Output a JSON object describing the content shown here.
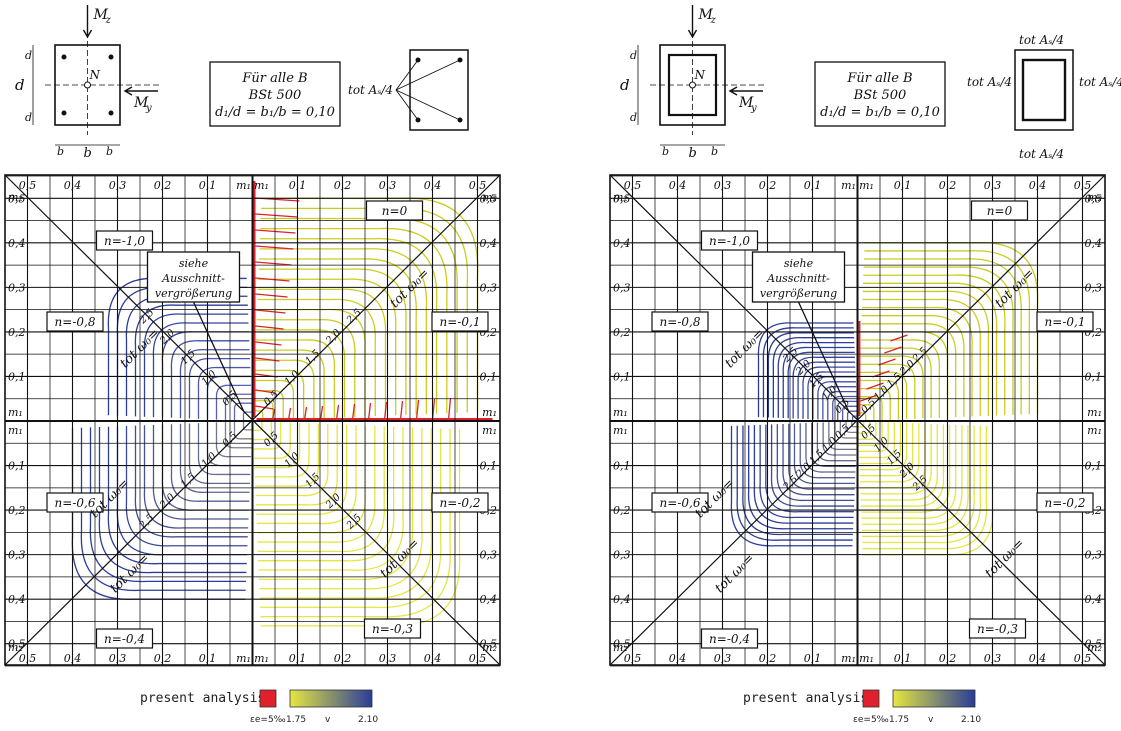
{
  "panels": [
    {
      "id": "left",
      "section_labels": {
        "Mz": "M",
        "Mz_sub": "z",
        "My": "M",
        "My_sub": "y",
        "N": "N",
        "d": "d",
        "d1_top": "d",
        "d1_bot": "d",
        "b": "b",
        "b1_left": "b",
        "b1_right": "b"
      },
      "info_box": [
        "Für alle B",
        "BSt 500",
        "d₁/d = b₁/b = 0,10"
      ],
      "reinforcement_label": "tot Aₛ/4",
      "reinforcement_type": "four-bars",
      "top_ticks": [
        "0,5",
        "0,4",
        "0,3",
        "0,2",
        "0,1",
        "m₁",
        "m₁",
        "0,1",
        "0,2",
        "0,3",
        "0,4",
        "0,5"
      ],
      "side_ticks": [
        "0,5",
        "0,4",
        "0,3",
        "0,2",
        "0,1",
        "m₁",
        "m₁",
        "0,1",
        "0,2",
        "0,3",
        "0,4",
        "0,5"
      ],
      "corner_label": "m₂",
      "n_labels": [
        "n=-1,0",
        "n=0",
        "n=-0,8",
        "n=-0,1",
        "n=-0,6",
        "n=-0,2",
        "n=-0,4",
        "n=-0,3"
      ],
      "callout": [
        "siehe",
        "Ausschnitt-",
        "vergrößerung"
      ],
      "omega_label": "tot ω₀=",
      "contour_labels": [
        "0,5",
        "1,0",
        "1,5",
        "2,0",
        "2,5"
      ]
    },
    {
      "id": "right",
      "section_labels": {
        "Mz": "M",
        "Mz_sub": "z",
        "My": "M",
        "My_sub": "y",
        "N": "N",
        "d": "d",
        "d1_top": "d",
        "d1_bot": "d",
        "b": "b",
        "b1_left": "b",
        "b1_right": "b"
      },
      "info_box": [
        "Für alle B",
        "BSt 500",
        "d₁/d = b₁/b = 0,10"
      ],
      "reinforcement_label": "tot Aₛ/4",
      "reinforcement_type": "perimeter",
      "top_ticks": [
        "0,5",
        "0,4",
        "0,3",
        "0,2",
        "0,1",
        "m₁",
        "m₁",
        "0,1",
        "0,2",
        "0,3",
        "0,4",
        "0,5"
      ],
      "side_ticks": [
        "0,5",
        "0,4",
        "0,3",
        "0,2",
        "0,1",
        "m₁",
        "m₁",
        "0,1",
        "0,2",
        "0,3",
        "0,4",
        "0,5"
      ],
      "corner_label": "m₂",
      "n_labels": [
        "n=-1,0",
        "n=0",
        "n=-0,8",
        "n=-0,1",
        "n=-0,6",
        "n=-0,2",
        "n=-0,4",
        "n=-0,3"
      ],
      "callout": [
        "siehe",
        "Ausschnitt-",
        "vergrößerung"
      ],
      "omega_label": "tot ω₀=",
      "contour_labels": [
        "0,5",
        "1,0",
        "1,5",
        "2,0",
        "2,5"
      ]
    }
  ],
  "legend": {
    "label": "present analysis",
    "strain_label": "εe=5‰",
    "v_min": "1.75",
    "v_symbol": "v",
    "v_max": "2.10",
    "colors": {
      "red": "#e0202a",
      "yellow": "#e6e640",
      "blue": "#2a3c9a"
    }
  }
}
